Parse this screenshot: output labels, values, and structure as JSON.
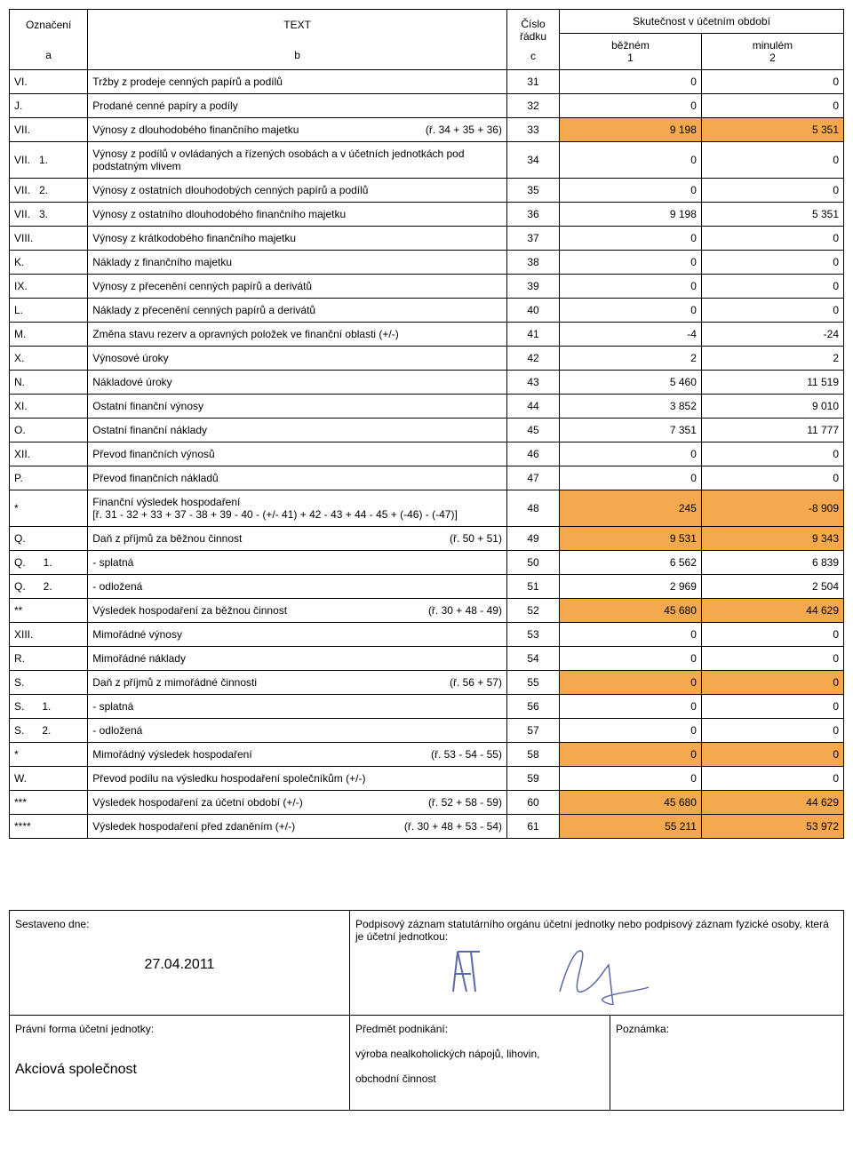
{
  "header": {
    "col_a_top": "Označení",
    "col_b_top": "TEXT",
    "col_c_top": "Číslo řádku",
    "col_real": "Skutečnost v účetním období",
    "col_1_top": "běžném",
    "col_2_top": "minulém",
    "col_a_bot": "a",
    "col_b_bot": "b",
    "col_c_bot": "c",
    "col_1_bot": "1",
    "col_2_bot": "2"
  },
  "rows": [
    {
      "a": "VI.",
      "b": "Tržby z prodeje cenných papírů a podílů",
      "ref": "",
      "c": "31",
      "v1": "0",
      "v2": "0",
      "hl1": false,
      "hl2": false
    },
    {
      "a": "J.",
      "b": "Prodané cenné papíry a podíly",
      "ref": "",
      "c": "32",
      "v1": "0",
      "v2": "0",
      "hl1": false,
      "hl2": false
    },
    {
      "a": "VII.",
      "b": "Výnosy z dlouhodobého finančního majetku",
      "ref": "(ř. 34 + 35 + 36)",
      "c": "33",
      "v1": "9 198",
      "v2": "5 351",
      "hl1": true,
      "hl2": true
    },
    {
      "a": "VII.   1.",
      "b": "Výnosy z podílů v ovládaných a řízených osobách a v účetních jednotkách pod podstatným vlivem",
      "ref": "",
      "c": "34",
      "v1": "0",
      "v2": "0",
      "hl1": false,
      "hl2": false
    },
    {
      "a": "VII.   2.",
      "b": "Výnosy z ostatních dlouhodobých cenných papírů a podílů",
      "ref": "",
      "c": "35",
      "v1": "0",
      "v2": "0",
      "hl1": false,
      "hl2": false
    },
    {
      "a": "VII.   3.",
      "b": "Výnosy z ostatního dlouhodobého finančního majetku",
      "ref": "",
      "c": "36",
      "v1": "9 198",
      "v2": "5 351",
      "hl1": false,
      "hl2": false
    },
    {
      "a": "VIII.",
      "b": "Výnosy z krátkodobého finančního majetku",
      "ref": "",
      "c": "37",
      "v1": "0",
      "v2": "0",
      "hl1": false,
      "hl2": false
    },
    {
      "a": "K.",
      "b": "Náklady z finančního majetku",
      "ref": "",
      "c": "38",
      "v1": "0",
      "v2": "0",
      "hl1": false,
      "hl2": false
    },
    {
      "a": "IX.",
      "b": "Výnosy z přecenění cenných papírů a derivátů",
      "ref": "",
      "c": "39",
      "v1": "0",
      "v2": "0",
      "hl1": false,
      "hl2": false
    },
    {
      "a": "L.",
      "b": "Náklady z přecenění cenných papírů a derivátů",
      "ref": "",
      "c": "40",
      "v1": "0",
      "v2": "0",
      "hl1": false,
      "hl2": false
    },
    {
      "a": "M.",
      "b": "Změna stavu rezerv a opravných položek ve finanční oblasti (+/-)",
      "ref": "",
      "c": "41",
      "v1": "-4",
      "v2": "-24",
      "hl1": false,
      "hl2": false
    },
    {
      "a": "X.",
      "b": "Výnosové úroky",
      "ref": "",
      "c": "42",
      "v1": "2",
      "v2": "2",
      "hl1": false,
      "hl2": false
    },
    {
      "a": "N.",
      "b": "Nákladové úroky",
      "ref": "",
      "c": "43",
      "v1": "5 460",
      "v2": "11 519",
      "hl1": false,
      "hl2": false
    },
    {
      "a": "XI.",
      "b": "Ostatní finanční výnosy",
      "ref": "",
      "c": "44",
      "v1": "3 852",
      "v2": "9 010",
      "hl1": false,
      "hl2": false
    },
    {
      "a": "O.",
      "b": "Ostatní finanční náklady",
      "ref": "",
      "c": "45",
      "v1": "7 351",
      "v2": "11 777",
      "hl1": false,
      "hl2": false
    },
    {
      "a": "XII.",
      "b": "Převod finančních výnosů",
      "ref": "",
      "c": "46",
      "v1": "0",
      "v2": "0",
      "hl1": false,
      "hl2": false
    },
    {
      "a": "P.",
      "b": "Převod finančních nákladů",
      "ref": "",
      "c": "47",
      "v1": "0",
      "v2": "0",
      "hl1": false,
      "hl2": false
    },
    {
      "a": "*",
      "b": "Finanční výsledek hospodaření\n[ř. 31 - 32 + 33 + 37 - 38 +  39 - 40 - (+/- 41) + 42 - 43 + 44 - 45 + (-46) - (-47)]",
      "ref": "",
      "c": "48",
      "v1": "245",
      "v2": "-8 909",
      "hl1": true,
      "hl2": true
    },
    {
      "a": "Q.",
      "b": "Daň z příjmů za běžnou činnost",
      "ref": "(ř. 50 + 51)",
      "c": "49",
      "v1": "9 531",
      "v2": "9 343",
      "hl1": true,
      "hl2": true
    },
    {
      "a": "Q.      1.",
      "b": "- splatná",
      "ref": "",
      "c": "50",
      "v1": "6 562",
      "v2": "6 839",
      "hl1": false,
      "hl2": false
    },
    {
      "a": "Q.      2.",
      "b": "- odložená",
      "ref": "",
      "c": "51",
      "v1": "2 969",
      "v2": "2 504",
      "hl1": false,
      "hl2": false
    },
    {
      "a": "**",
      "b": "Výsledek hospodaření za běžnou činnost",
      "ref": "(ř. 30 + 48 - 49)",
      "c": "52",
      "v1": "45 680",
      "v2": "44 629",
      "hl1": true,
      "hl2": true
    },
    {
      "a": "XIII.",
      "b": "Mimořádné výnosy",
      "ref": "",
      "c": "53",
      "v1": "0",
      "v2": "0",
      "hl1": false,
      "hl2": false
    },
    {
      "a": "R.",
      "b": "Mimořádné náklady",
      "ref": "",
      "c": "54",
      "v1": "0",
      "v2": "0",
      "hl1": false,
      "hl2": false
    },
    {
      "a": "S.",
      "b": "Daň z příjmů z mimořádné činnosti",
      "ref": "(ř. 56 + 57)",
      "c": "55",
      "v1": "0",
      "v2": "0",
      "hl1": true,
      "hl2": true
    },
    {
      "a": "S.      1.",
      "b": "- splatná",
      "ref": "",
      "c": "56",
      "v1": "0",
      "v2": "0",
      "hl1": false,
      "hl2": false
    },
    {
      "a": "S.      2.",
      "b": "- odložená",
      "ref": "",
      "c": "57",
      "v1": "0",
      "v2": "0",
      "hl1": false,
      "hl2": false
    },
    {
      "a": "*",
      "b": "Mimořádný výsledek hospodaření",
      "ref": "(ř. 53 - 54 - 55)",
      "c": "58",
      "v1": "0",
      "v2": "0",
      "hl1": true,
      "hl2": true
    },
    {
      "a": "W.",
      "b": "Převod podílu na výsledku hospodaření společníkům (+/-)",
      "ref": "",
      "c": "59",
      "v1": "0",
      "v2": "0",
      "hl1": false,
      "hl2": false
    },
    {
      "a": "***",
      "b": "Výsledek hospodaření za účetní období (+/-)",
      "ref": "(ř. 52 + 58 - 59)",
      "c": "60",
      "v1": "45 680",
      "v2": "44 629",
      "hl1": true,
      "hl2": true
    },
    {
      "a": "****",
      "b": "Výsledek hospodaření před zdaněním (+/-)",
      "ref": "(ř. 30 + 48 + 53 - 54)",
      "c": "61",
      "v1": "55 211",
      "v2": "53 972",
      "hl1": true,
      "hl2": true
    }
  ],
  "footer": {
    "sestaveno": "Sestaveno dne:",
    "date": "27.04.2011",
    "podpis_label": "Podpisový záznam statutárního orgánu účetní jednotky nebo podpisový záznam fyzické osoby, která je účetní jednotkou:",
    "forma_label": "Právní forma účetní jednotky:",
    "forma_value": "Akciová společnost",
    "predmet_label": "Předmět podnikání:",
    "predmet_value1": "výroba nealkoholických nápojů, lihovin,",
    "predmet_value2": "obchodní činnost",
    "poznamka_label": "Poznámka:"
  },
  "style": {
    "highlight_color": "#f5a94d"
  }
}
